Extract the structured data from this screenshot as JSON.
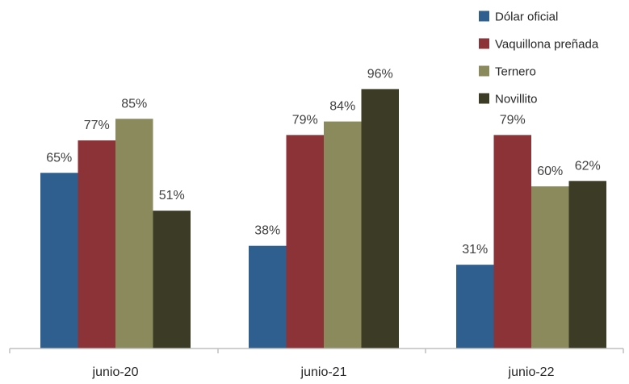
{
  "chart_data": {
    "type": "bar",
    "categories": [
      "junio-20",
      "junio-21",
      "junio-22"
    ],
    "series": [
      {
        "name": "Dólar oficial",
        "color": "#2e5f8f",
        "values": [
          65,
          38,
          31
        ],
        "labels": [
          "65%",
          "38%",
          "31%"
        ]
      },
      {
        "name": "Vaquillona preñada",
        "color": "#8c3338",
        "values": [
          77,
          79,
          79
        ],
        "labels": [
          "77%",
          "79%",
          "79%"
        ]
      },
      {
        "name": "Ternero",
        "color": "#8b8a5c",
        "values": [
          85,
          84,
          60
        ],
        "labels": [
          "85%",
          "84%",
          "60%"
        ]
      },
      {
        "name": "Novillito",
        "color": "#3b3b26",
        "values": [
          51,
          96,
          62
        ],
        "labels": [
          "51%",
          "96%",
          "62%"
        ]
      }
    ],
    "ylim": [
      0,
      100
    ],
    "value_format": "percent",
    "grid": false,
    "legend_position": "top-right",
    "title": "",
    "xlabel": "",
    "ylabel": ""
  }
}
